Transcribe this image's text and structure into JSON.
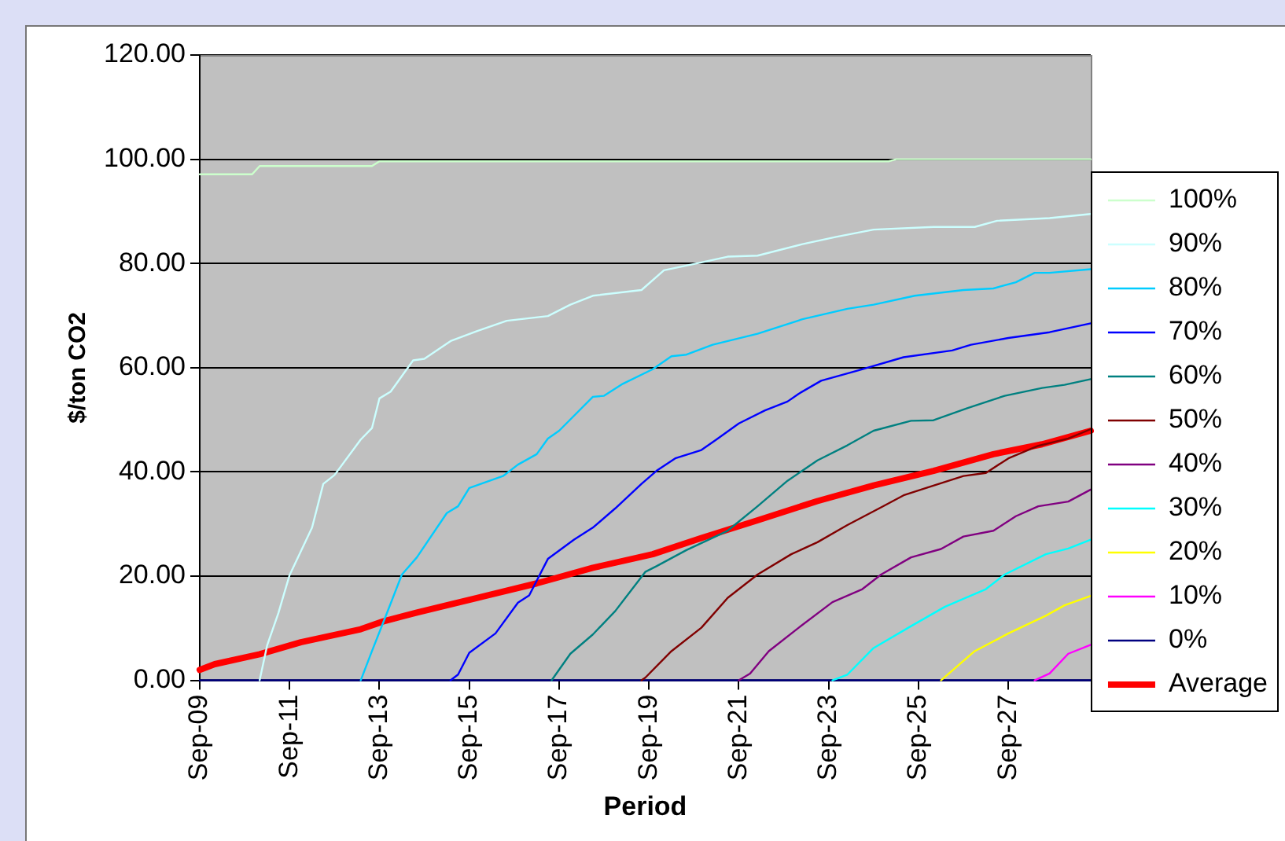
{
  "chart_data": {
    "type": "line",
    "xlabel": "Period",
    "ylabel": "$/ton CO2",
    "xlim": [
      "2009-09",
      "2029-07"
    ],
    "xticks": [
      {
        "value": "2009-09",
        "label": "Sep-09"
      },
      {
        "value": "2011-09",
        "label": "Sep-11"
      },
      {
        "value": "2013-09",
        "label": "Sep-13"
      },
      {
        "value": "2015-09",
        "label": "Sep-15"
      },
      {
        "value": "2017-09",
        "label": "Sep-17"
      },
      {
        "value": "2019-09",
        "label": "Sep-19"
      },
      {
        "value": "2021-09",
        "label": "Sep-21"
      },
      {
        "value": "2023-09",
        "label": "Sep-23"
      },
      {
        "value": "2025-09",
        "label": "Sep-25"
      },
      {
        "value": "2027-09",
        "label": "Sep-27"
      }
    ],
    "ylim": [
      0,
      120
    ],
    "yticks": [
      {
        "value": 0,
        "label": "0.00"
      },
      {
        "value": 20,
        "label": "20.00"
      },
      {
        "value": 40,
        "label": "40.00"
      },
      {
        "value": 60,
        "label": "60.00"
      },
      {
        "value": 80,
        "label": "80.00"
      },
      {
        "value": 100,
        "label": "100.00"
      },
      {
        "value": 120,
        "label": "120.00"
      }
    ],
    "grid": "y",
    "legend": "right",
    "marker": "none",
    "line_style": "solid",
    "series": [
      {
        "name": "100%",
        "color": "#ccffcc",
        "x": [
          "2009-09",
          "2010-11",
          "2011-01",
          "2013-07",
          "2013-09",
          "2025-01",
          "2025-03",
          "2029-07"
        ],
        "values": [
          97.1,
          97.1,
          98.7,
          98.7,
          99.6,
          99.6,
          100,
          100
        ]
      },
      {
        "name": "90%",
        "color": "#ccffff",
        "x": [
          "2011-01",
          "2011-03",
          "2011-06",
          "2011-09",
          "2012-03",
          "2012-06",
          "2012-09",
          "2013-04",
          "2013-07",
          "2013-09",
          "2013-12",
          "2014-06",
          "2014-09",
          "2015-04",
          "2015-11",
          "2016-07",
          "2017-06",
          "2017-12",
          "2018-06",
          "2019-07",
          "2020-01",
          "2020-11",
          "2021-06",
          "2022-02",
          "2023-02",
          "2023-11",
          "2024-09",
          "2026-01",
          "2026-12",
          "2027-06",
          "2028-08",
          "2029-07"
        ],
        "values": [
          0,
          6.7,
          12.9,
          20.2,
          29.3,
          37.7,
          39.4,
          46.2,
          48.4,
          54.1,
          55.4,
          61.4,
          61.7,
          65.1,
          67.0,
          69.0,
          69.9,
          72.1,
          73.8,
          74.9,
          78.7,
          80.2,
          81.3,
          81.5,
          83.7,
          85.1,
          86.5,
          87.0,
          87.0,
          88.2,
          88.7,
          89.5
        ]
      },
      {
        "name": "80%",
        "color": "#00ccff",
        "x": [
          "2013-04",
          "2013-07",
          "2013-11",
          "2014-03",
          "2014-07",
          "2015-03",
          "2015-06",
          "2015-09",
          "2016-06",
          "2016-10",
          "2017-03",
          "2017-06",
          "2017-09",
          "2018-06",
          "2018-09",
          "2019-02",
          "2019-10",
          "2020-03",
          "2020-07",
          "2021-02",
          "2022-02",
          "2023-02",
          "2024-02",
          "2024-09",
          "2025-08",
          "2026-09",
          "2027-05",
          "2027-11",
          "2028-04",
          "2028-08",
          "2029-07"
        ],
        "values": [
          0,
          5.6,
          12.9,
          20.3,
          23.6,
          32.1,
          33.4,
          36.9,
          39.2,
          41.4,
          43.4,
          46.4,
          47.9,
          54.4,
          54.6,
          56.9,
          59.7,
          62.2,
          62.5,
          64.4,
          66.5,
          69.3,
          71.3,
          72.1,
          73.8,
          74.9,
          75.2,
          76.4,
          78.2,
          78.2,
          78.9
        ]
      },
      {
        "name": "70%",
        "color": "#0000ff",
        "x": [
          "2015-04",
          "2015-06",
          "2015-09",
          "2016-04",
          "2016-10",
          "2017-01",
          "2017-06",
          "2018-01",
          "2018-06",
          "2018-12",
          "2019-07",
          "2019-11",
          "2020-04",
          "2020-11",
          "2021-03",
          "2021-09",
          "2022-04",
          "2022-10",
          "2023-01",
          "2023-07",
          "2024-05",
          "2025-05",
          "2026-06",
          "2026-11",
          "2027-09",
          "2028-08",
          "2029-07"
        ],
        "values": [
          0,
          1.1,
          5.3,
          9.0,
          14.9,
          16.3,
          23.3,
          27.0,
          29.3,
          33.0,
          37.7,
          40.2,
          42.6,
          44.2,
          46.2,
          49.3,
          51.8,
          53.5,
          55.0,
          57.5,
          59.5,
          62.0,
          63.3,
          64.4,
          65.7,
          66.8,
          68.5
        ]
      },
      {
        "name": "60%",
        "color": "#008080",
        "x": [
          "2017-07",
          "2017-12",
          "2018-06",
          "2018-12",
          "2019-08",
          "2019-11",
          "2020-07",
          "2021-06",
          "2022-02",
          "2022-10",
          "2023-06",
          "2024-02",
          "2024-09",
          "2025-07",
          "2026-01",
          "2026-10",
          "2027-08",
          "2028-06",
          "2028-12",
          "2029-07"
        ],
        "values": [
          0,
          5.1,
          8.8,
          13.3,
          20.8,
          21.9,
          25.0,
          28.7,
          33.4,
          38.3,
          42.2,
          45.1,
          47.9,
          49.8,
          49.9,
          52.2,
          54.6,
          56.1,
          56.7,
          57.8
        ]
      },
      {
        "name": "50%",
        "color": "#800000",
        "x": [
          "2019-07",
          "2019-08",
          "2020-03",
          "2020-11",
          "2021-06",
          "2022-02",
          "2022-11",
          "2023-06",
          "2024-02",
          "2024-11",
          "2025-05",
          "2025-11",
          "2026-09",
          "2027-03",
          "2027-09",
          "2028-05",
          "2029-01",
          "2029-07"
        ],
        "values": [
          0,
          0.5,
          5.6,
          10.1,
          15.8,
          20.3,
          24.2,
          26.5,
          29.8,
          33.2,
          35.5,
          36.9,
          39.2,
          39.8,
          42.6,
          45.0,
          46.4,
          48.2
        ]
      },
      {
        "name": "40%",
        "color": "#800080",
        "x": [
          "2021-09",
          "2021-12",
          "2022-05",
          "2023-01",
          "2023-10",
          "2024-06",
          "2024-11",
          "2025-07",
          "2026-03",
          "2026-09",
          "2027-05",
          "2027-11",
          "2028-05",
          "2029-01",
          "2029-07"
        ],
        "values": [
          0,
          1.3,
          5.6,
          10.1,
          15.0,
          17.5,
          20.3,
          23.6,
          25.2,
          27.6,
          28.7,
          31.5,
          33.4,
          34.3,
          36.6
        ]
      },
      {
        "name": "30%",
        "color": "#00ffff",
        "x": [
          "2023-10",
          "2024-02",
          "2024-09",
          "2025-07",
          "2026-04",
          "2027-03",
          "2027-08",
          "2028-07",
          "2029-01",
          "2029-07"
        ],
        "values": [
          0,
          1.1,
          6.2,
          10.4,
          14.1,
          17.5,
          20.3,
          24.2,
          25.3,
          27.0
        ]
      },
      {
        "name": "20%",
        "color": "#ffff00",
        "x": [
          "2026-03",
          "2026-12",
          "2027-09",
          "2028-07",
          "2028-12",
          "2029-07"
        ],
        "values": [
          0,
          5.6,
          9.0,
          12.4,
          14.4,
          16.2
        ]
      },
      {
        "name": "10%",
        "color": "#ff00ff",
        "x": [
          "2028-04",
          "2028-08",
          "2029-01",
          "2029-07"
        ],
        "values": [
          0,
          1.3,
          5.1,
          6.8
        ]
      },
      {
        "name": "0%",
        "color": "#000080",
        "x": [
          "2009-09",
          "2029-07"
        ],
        "values": [
          0,
          0
        ]
      },
      {
        "name": "Average",
        "color": "#ff0000",
        "x": [
          "2009-09",
          "2010-01",
          "2011-01",
          "2011-12",
          "2013-04",
          "2013-10",
          "2014-07",
          "2015-11",
          "2017-03",
          "2018-06",
          "2019-10",
          "2020-11",
          "2022-02",
          "2023-06",
          "2024-09",
          "2026-01",
          "2027-05",
          "2028-06",
          "2029-07"
        ],
        "values": [
          2.0,
          3.1,
          5.0,
          7.3,
          9.8,
          11.3,
          13.0,
          15.8,
          18.6,
          21.6,
          24.2,
          27.3,
          30.7,
          34.4,
          37.4,
          40.2,
          43.4,
          45.3,
          47.9
        ]
      }
    ]
  }
}
